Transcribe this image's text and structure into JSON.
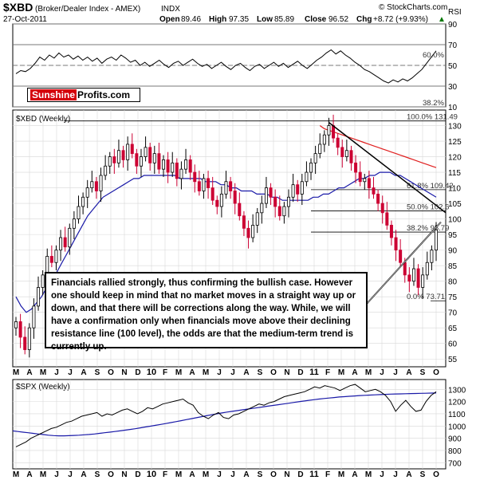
{
  "header": {
    "symbol": "$XBD",
    "name": "(Broker/Dealer Index - AMEX)",
    "exchange": "INDX",
    "watermark": "© StockCharts.com",
    "date": "27-Oct-2011",
    "open_label": "Open",
    "open": "89.46",
    "high_label": "High",
    "high": "97.35",
    "low_label": "Low",
    "low": "85.89",
    "close_label": "Close",
    "close": "96.52",
    "chg_label": "Chg",
    "chg": "+8.72 (+9.93%)",
    "up_arrow": "▲"
  },
  "logo": {
    "red": "Sunshine",
    "black": "Profits.com"
  },
  "panels": {
    "rsi_label": "RSI",
    "price_label": "$XBD (Weekly)",
    "spx_label": "$SPX (Weekly)"
  },
  "annotation": "Financials rallied strongly, thus confirming the bullish case. However one should keep in mind that no market moves in a straight way up or down, and that there will be corrections along the way. While, we will have a confirmation only when financials move above their declining resistance line (100 level), the odds are that the medium-term trend is currently up.",
  "colors": {
    "up": "#000000",
    "down": "#cc0033",
    "ma_short": "#1a1aa8",
    "ma_long": "#e02020",
    "grid": "#d8d8d8"
  },
  "chart_data": [
    {
      "type": "line",
      "name": "RSI",
      "ylim": [
        10,
        90
      ],
      "yticks": [
        10,
        30,
        50,
        70,
        90
      ],
      "reference_lines": [
        30,
        50,
        70
      ],
      "labels": {
        "right_top": "60.0%",
        "right_bottom": "38.2%"
      },
      "values": [
        42,
        45,
        44,
        47,
        52,
        58,
        55,
        60,
        57,
        62,
        58,
        60,
        56,
        59,
        55,
        58,
        54,
        57,
        52,
        56,
        58,
        55,
        60,
        57,
        53,
        55,
        50,
        53,
        49,
        52,
        55,
        51,
        48,
        52,
        54,
        50,
        53,
        56,
        52,
        49,
        51,
        47,
        50,
        53,
        49,
        46,
        50,
        52,
        48,
        45,
        49,
        51,
        47,
        50,
        53,
        49,
        52,
        48,
        51,
        54,
        50,
        47,
        51,
        55,
        58,
        62,
        65,
        61,
        64,
        60,
        57,
        53,
        50,
        46,
        44,
        41,
        38,
        35,
        33,
        36,
        34,
        37,
        35,
        38,
        42,
        46,
        52,
        58,
        64
      ]
    },
    {
      "type": "candlestick",
      "name": "$XBD (Weekly)",
      "ylim": [
        52.5,
        135
      ],
      "yticks": [
        55,
        60,
        65,
        70,
        75,
        80,
        85,
        90,
        95,
        100,
        105,
        110,
        115,
        120,
        125,
        130
      ],
      "x_months": [
        "M",
        "A",
        "M",
        "J",
        "J",
        "A",
        "S",
        "O",
        "N",
        "D",
        "10",
        "F",
        "M",
        "A",
        "M",
        "J",
        "J",
        "A",
        "S",
        "O",
        "N",
        "D",
        "11",
        "F",
        "M",
        "A",
        "M",
        "J",
        "J",
        "A",
        "S",
        "O"
      ],
      "fib_levels": [
        {
          "label": "100.0%",
          "value": 131.49
        },
        {
          "label": "61.8%",
          "value": 109.42
        },
        {
          "label": "50.0%",
          "value": 102.6
        },
        {
          "label": "38.2%",
          "value": 95.79
        },
        {
          "label": "0.0%",
          "value": 73.71
        }
      ],
      "closes": [
        67,
        62,
        58,
        65,
        72,
        78,
        82,
        88,
        86,
        90,
        94,
        91,
        97,
        100,
        104,
        107,
        110,
        112,
        109,
        114,
        117,
        120,
        118,
        122,
        119,
        124,
        121,
        117,
        120,
        123,
        118,
        121,
        116,
        119,
        115,
        118,
        113,
        116,
        119,
        115,
        112,
        109,
        113,
        110,
        106,
        104,
        108,
        112,
        109,
        105,
        101,
        97,
        94,
        98,
        102,
        105,
        110,
        107,
        104,
        101,
        104,
        107,
        111,
        108,
        112,
        115,
        118,
        121,
        124,
        127,
        130,
        126,
        123,
        120,
        122,
        118,
        115,
        112,
        113,
        110,
        108,
        105,
        102,
        98,
        94,
        90,
        86,
        82,
        80,
        84,
        78,
        82,
        86,
        90,
        96.5
      ],
      "ma_short": [
        75,
        72,
        70,
        71,
        73,
        75,
        78,
        81,
        83,
        86,
        89,
        92,
        95,
        98,
        101,
        103,
        105,
        107,
        108,
        109,
        110,
        111,
        112,
        113,
        113,
        114,
        114,
        114,
        114,
        114,
        114,
        114,
        113,
        113,
        113,
        113,
        113,
        112,
        112,
        112,
        111,
        111,
        110,
        110,
        109,
        109,
        109,
        108,
        108,
        108,
        107,
        107,
        106,
        106,
        106,
        106,
        106,
        106,
        107,
        107,
        108,
        108,
        109,
        110,
        110,
        111,
        112,
        113,
        113,
        114,
        114,
        115,
        115,
        115,
        114,
        114,
        113,
        112,
        111,
        110,
        109,
        108,
        107
      ],
      "ma_long": [
        130,
        129,
        128.5,
        128,
        127.5,
        127,
        126.5,
        126,
        125.5,
        125,
        124.5,
        124,
        123.5,
        123,
        122.5,
        122,
        121.5,
        121,
        120.5,
        120,
        119.5,
        119,
        118.5,
        118,
        117.5,
        117,
        116.5
      ]
    },
    {
      "type": "line",
      "name": "$SPX (Weekly)",
      "ylim": [
        650,
        1380
      ],
      "yticks": [
        700,
        800,
        900,
        1000,
        1100,
        1200,
        1300
      ],
      "values": [
        830,
        850,
        870,
        900,
        920,
        940,
        960,
        980,
        990,
        1010,
        1030,
        1040,
        1060,
        1080,
        1090,
        1100,
        1110,
        1080,
        1100,
        1090,
        1110,
        1130,
        1140,
        1120,
        1100,
        1120,
        1150,
        1140,
        1160,
        1180,
        1190,
        1200,
        1210,
        1220,
        1190,
        1170,
        1110,
        1080,
        1060,
        1090,
        1110,
        1070,
        1060,
        1090,
        1100,
        1120,
        1140,
        1160,
        1180,
        1170,
        1190,
        1200,
        1220,
        1240,
        1250,
        1260,
        1270,
        1280,
        1300,
        1320,
        1310,
        1330,
        1320,
        1310,
        1290,
        1310,
        1330,
        1340,
        1310,
        1280,
        1290,
        1300,
        1280,
        1250,
        1200,
        1120,
        1170,
        1210,
        1160,
        1120,
        1130,
        1200,
        1250,
        1280
      ],
      "ma": [
        960,
        955,
        950,
        945,
        940,
        935,
        930,
        925,
        922,
        920,
        920,
        921,
        923,
        925,
        928,
        931,
        935,
        940,
        945,
        950,
        955,
        960,
        966,
        972,
        978,
        985,
        992,
        999,
        1006,
        1013,
        1020,
        1028,
        1036,
        1044,
        1052,
        1060,
        1068,
        1076,
        1084,
        1092,
        1100,
        1107,
        1114,
        1120,
        1126,
        1132,
        1138,
        1144,
        1150,
        1156,
        1162,
        1168,
        1174,
        1180,
        1186,
        1192,
        1198,
        1204,
        1210,
        1215,
        1220,
        1225,
        1229,
        1233,
        1237,
        1240,
        1243,
        1246,
        1249,
        1251,
        1253,
        1255,
        1257,
        1259,
        1261,
        1262,
        1263,
        1264,
        1265,
        1266,
        1267,
        1268,
        1269,
        1270
      ]
    }
  ]
}
